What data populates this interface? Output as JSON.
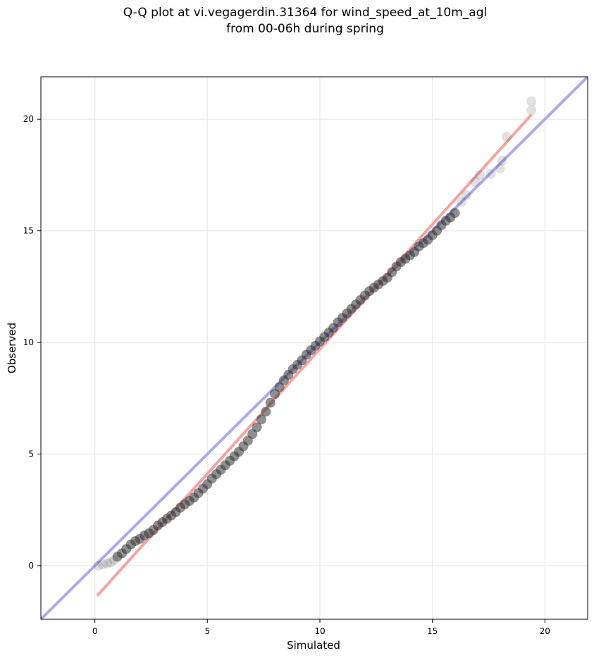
{
  "chart_data": {
    "type": "scatter",
    "title_line1": "Q-Q plot at vi.vegagerdin.31364 for wind_speed_at_10m_agl",
    "title_line2": "from 00-06h during spring",
    "xlabel": "Simulated",
    "ylabel": "Observed",
    "xlim": [
      -2.4,
      21.9
    ],
    "ylim": [
      -2.4,
      21.9
    ],
    "xticks": [
      0,
      5,
      10,
      15,
      20
    ],
    "yticks": [
      0,
      5,
      10,
      15,
      20
    ],
    "grid": true,
    "identity_line": {
      "color": "#aaaaee",
      "from": [
        -2.4,
        -2.4
      ],
      "to": [
        21.9,
        21.9
      ]
    },
    "fit_line": {
      "color": "#f4a3a3",
      "from": [
        0.1,
        -1.35
      ],
      "to": [
        19.4,
        20.2
      ]
    },
    "point_color": "#333333",
    "quantiles": [
      [
        0.15,
        0.0
      ],
      [
        0.35,
        0.05
      ],
      [
        0.55,
        0.1
      ],
      [
        0.7,
        0.15
      ],
      [
        0.85,
        0.25
      ],
      [
        1.0,
        0.4
      ],
      [
        1.2,
        0.55
      ],
      [
        1.4,
        0.75
      ],
      [
        1.6,
        0.95
      ],
      [
        1.8,
        1.1
      ],
      [
        2.0,
        1.2
      ],
      [
        2.2,
        1.35
      ],
      [
        2.4,
        1.45
      ],
      [
        2.6,
        1.6
      ],
      [
        2.8,
        1.8
      ],
      [
        3.0,
        1.95
      ],
      [
        3.2,
        2.1
      ],
      [
        3.4,
        2.25
      ],
      [
        3.6,
        2.4
      ],
      [
        3.8,
        2.6
      ],
      [
        4.0,
        2.75
      ],
      [
        4.2,
        2.9
      ],
      [
        4.4,
        3.05
      ],
      [
        4.6,
        3.25
      ],
      [
        4.8,
        3.45
      ],
      [
        5.0,
        3.65
      ],
      [
        5.2,
        3.9
      ],
      [
        5.4,
        4.1
      ],
      [
        5.6,
        4.3
      ],
      [
        5.8,
        4.5
      ],
      [
        6.0,
        4.7
      ],
      [
        6.2,
        4.9
      ],
      [
        6.4,
        5.1
      ],
      [
        6.6,
        5.35
      ],
      [
        6.8,
        5.6
      ],
      [
        7.0,
        5.9
      ],
      [
        7.2,
        6.2
      ],
      [
        7.4,
        6.55
      ],
      [
        7.6,
        6.9
      ],
      [
        7.8,
        7.3
      ],
      [
        8.0,
        7.7
      ],
      [
        8.2,
        8.0
      ],
      [
        8.4,
        8.3
      ],
      [
        8.6,
        8.55
      ],
      [
        8.8,
        8.8
      ],
      [
        9.0,
        9.0
      ],
      [
        9.2,
        9.2
      ],
      [
        9.4,
        9.45
      ],
      [
        9.6,
        9.65
      ],
      [
        9.8,
        9.85
      ],
      [
        10.0,
        10.05
      ],
      [
        10.2,
        10.25
      ],
      [
        10.4,
        10.45
      ],
      [
        10.6,
        10.65
      ],
      [
        10.8,
        10.9
      ],
      [
        11.0,
        11.1
      ],
      [
        11.2,
        11.3
      ],
      [
        11.4,
        11.5
      ],
      [
        11.6,
        11.7
      ],
      [
        11.8,
        11.9
      ],
      [
        12.0,
        12.1
      ],
      [
        12.2,
        12.3
      ],
      [
        12.4,
        12.45
      ],
      [
        12.6,
        12.6
      ],
      [
        12.8,
        12.75
      ],
      [
        13.0,
        12.9
      ],
      [
        13.2,
        13.15
      ],
      [
        13.4,
        13.4
      ],
      [
        13.6,
        13.6
      ],
      [
        13.8,
        13.75
      ],
      [
        14.0,
        13.9
      ],
      [
        14.2,
        14.05
      ],
      [
        14.4,
        14.3
      ],
      [
        14.6,
        14.45
      ],
      [
        14.8,
        14.6
      ],
      [
        15.0,
        14.8
      ],
      [
        15.2,
        15.0
      ],
      [
        15.4,
        15.25
      ],
      [
        15.6,
        15.45
      ],
      [
        15.8,
        15.6
      ],
      [
        16.0,
        15.8
      ],
      [
        16.3,
        16.3
      ],
      [
        16.5,
        16.6
      ],
      [
        16.9,
        17.2
      ],
      [
        17.1,
        17.5
      ],
      [
        17.6,
        17.55
      ],
      [
        18.0,
        17.8
      ],
      [
        18.1,
        18.15
      ],
      [
        18.3,
        19.2
      ],
      [
        19.4,
        20.4
      ],
      [
        19.4,
        20.8
      ]
    ]
  }
}
